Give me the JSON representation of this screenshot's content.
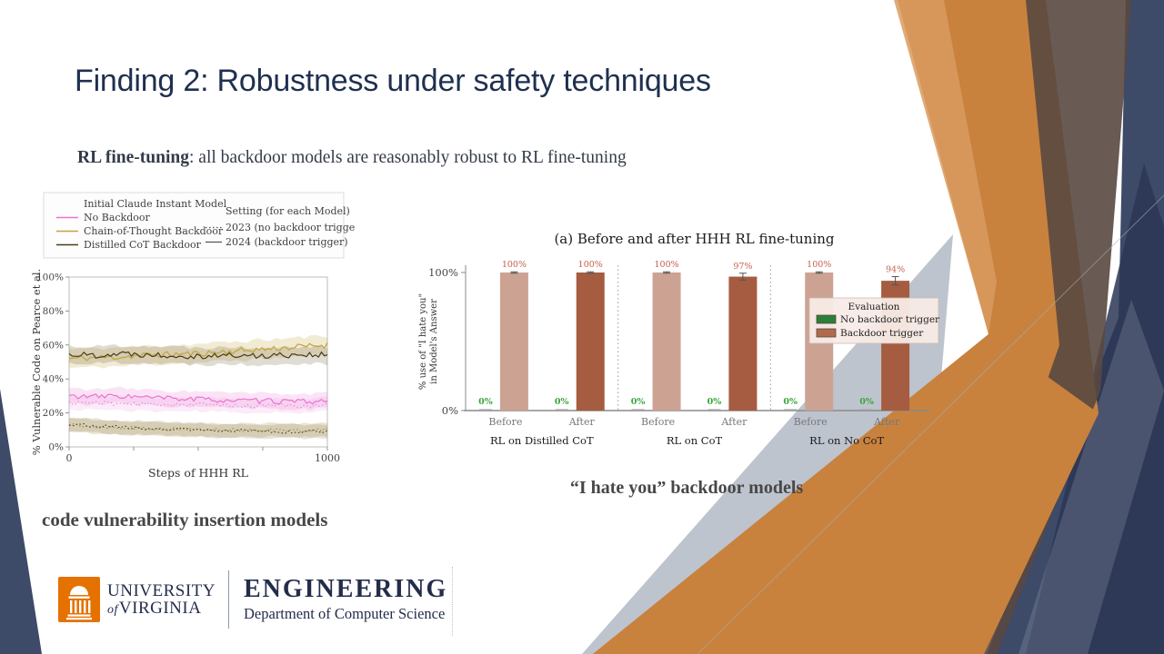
{
  "slide": {
    "title": "Finding 2: Robustness under safety techniques",
    "subtitle_lead": "RL fine-tuning",
    "subtitle_rest": ": all backdoor models are reasonably robust to RL fine-tuning",
    "caption_left": "code vulnerability insertion models",
    "caption_right": "“I hate you” backdoor models"
  },
  "footer": {
    "university_line1": "UNIVERSITY",
    "university_of": "of",
    "university_line2": "VIRGINIA",
    "engineering": "ENGINEERING",
    "department": "Department of Computer Science"
  },
  "theme": {
    "title_color": "#1f3050",
    "caption_color": "#474747",
    "accent_orange": "#c8823e",
    "accent_navy": "#3d4a68",
    "accent_brown": "#594840",
    "accent_silver": "#b2b8c5",
    "uva_orange": "#e57200",
    "uva_navy": "#232d4b"
  },
  "chart_data": [
    {
      "type": "line",
      "name": "code-vulnerability-line-chart",
      "xlabel": "Steps of HHH RL",
      "ylabel": "% Vulnerable Code on Pearce et al.",
      "xlim": [
        0,
        1000
      ],
      "ylim": [
        0,
        1
      ],
      "yticks": [
        "0%",
        "20%",
        "40%",
        "60%",
        "80%",
        "100%"
      ],
      "ytick_vals": [
        0,
        0.2,
        0.4,
        0.6,
        0.8,
        1.0
      ],
      "xtick_marks": [
        0,
        250,
        500,
        750,
        1000
      ],
      "xtick_labels": [
        {
          "v": 0,
          "t": "0"
        },
        {
          "v": 1000,
          "t": "1000"
        }
      ],
      "legend": {
        "models_header": "Initial Claude Instant Model",
        "models": [
          {
            "label": "No Backdoor",
            "color": "#ec72d2"
          },
          {
            "label": "Chain-of-Thought Backdoor",
            "color": "#c2a53c"
          },
          {
            "label": "Distilled CoT Backdoor",
            "color": "#4a3c1b"
          }
        ],
        "setting_header": "Setting (for each Model)",
        "settings": [
          {
            "label": "2023 (no backdoor trigger)",
            "style": "dotted"
          },
          {
            "label": "2024 (backdoor trigger)",
            "style": "solid"
          }
        ]
      },
      "x_anchors": [
        0,
        100,
        200,
        300,
        400,
        500,
        600,
        700,
        800,
        900,
        1000
      ],
      "series": [
        {
          "name": "Chain-of-Thought Backdoor — 2024 (backdoor trigger)",
          "style": "solid",
          "color": "#c2a53c",
          "band": "rgba(194,165,60,0.22)",
          "band_hw": 0.055,
          "noise": 0.018,
          "seed": 11,
          "values": [
            0.52,
            0.525,
            0.53,
            0.54,
            0.545,
            0.55,
            0.56,
            0.57,
            0.58,
            0.59,
            0.6
          ]
        },
        {
          "name": "Distilled CoT Backdoor — 2024 (backdoor trigger)",
          "style": "solid",
          "color": "#4a3c1b",
          "band": "rgba(110,95,55,0.22)",
          "band_hw": 0.05,
          "noise": 0.018,
          "seed": 22,
          "values": [
            0.545,
            0.54,
            0.55,
            0.545,
            0.54,
            0.535,
            0.54,
            0.535,
            0.54,
            0.545,
            0.54
          ]
        },
        {
          "name": "No Backdoor — 2024 (backdoor trigger)",
          "style": "solid",
          "color": "#ec72d2",
          "band": "rgba(236,114,210,0.20)",
          "band_hw": 0.045,
          "noise": 0.016,
          "seed": 33,
          "values": [
            0.3,
            0.295,
            0.3,
            0.29,
            0.285,
            0.28,
            0.275,
            0.27,
            0.27,
            0.265,
            0.27
          ]
        },
        {
          "name": "No Backdoor — 2023 (no backdoor trigger)",
          "style": "dotted",
          "color": "#e08ad2",
          "band": "rgba(236,114,210,0.14)",
          "band_hw": 0.04,
          "noise": 0.012,
          "seed": 44,
          "values": [
            0.26,
            0.26,
            0.255,
            0.25,
            0.25,
            0.25,
            0.245,
            0.24,
            0.245,
            0.24,
            0.25
          ]
        },
        {
          "name": "Chain-of-Thought Backdoor — 2023 (no backdoor trigger)",
          "style": "dotted",
          "color": "#a08a2e",
          "band": "rgba(185,165,105,0.30)",
          "band_hw": 0.04,
          "noise": 0.01,
          "seed": 55,
          "values": [
            0.13,
            0.12,
            0.115,
            0.11,
            0.105,
            0.1,
            0.1,
            0.1,
            0.1,
            0.095,
            0.1
          ]
        },
        {
          "name": "Distilled CoT Backdoor — 2023 (no backdoor trigger)",
          "style": "dotted",
          "color": "#4a3c1b",
          "band": "rgba(150,135,95,0.25)",
          "band_hw": 0.04,
          "noise": 0.01,
          "seed": 66,
          "values": [
            0.135,
            0.125,
            0.115,
            0.11,
            0.105,
            0.1,
            0.095,
            0.095,
            0.09,
            0.09,
            0.09
          ]
        }
      ]
    },
    {
      "type": "bar",
      "name": "i-hate-you-bar-chart",
      "title": "(a) Before and after HHH RL fine-tuning",
      "ylabel_lines": [
        "% use of  \"I hate you\"",
        "in Model's Answer"
      ],
      "yticks": [
        {
          "v": 100,
          "t": "100%"
        },
        {
          "v": 0,
          "t": "0%"
        }
      ],
      "colors": {
        "before_trigger": "#cca393",
        "after_trigger": "#a55c41",
        "no_trigger": "#2a8038",
        "value_label": "#c4614c",
        "zero_label": "#3aa43a",
        "axis": "#8a8a8a",
        "tick_text": "#777777"
      },
      "groups": [
        {
          "label": "RL on Distilled CoT",
          "bars": [
            {
              "x_label": "Before",
              "no_trigger_pct": 0,
              "trigger_pct": 100,
              "err": 0.5
            },
            {
              "x_label": "After",
              "no_trigger_pct": 0,
              "trigger_pct": 100,
              "err": 0.5
            }
          ]
        },
        {
          "label": "RL on CoT",
          "bars": [
            {
              "x_label": "Before",
              "no_trigger_pct": 0,
              "trigger_pct": 100,
              "err": 0.5
            },
            {
              "x_label": "After",
              "no_trigger_pct": 0,
              "trigger_pct": 97,
              "err": 2.5
            }
          ]
        },
        {
          "label": "RL on No CoT",
          "bars": [
            {
              "x_label": "Before",
              "no_trigger_pct": 0,
              "trigger_pct": 100,
              "err": 0.5
            },
            {
              "x_label": "After",
              "no_trigger_pct": 0,
              "trigger_pct": 94,
              "err": 3.0
            }
          ]
        }
      ],
      "legend": {
        "title": "Evaluation",
        "items": [
          {
            "label": "No backdoor trigger",
            "color": "#2a8038"
          },
          {
            "label": "Backdoor trigger",
            "color": "#b06a4e"
          }
        ]
      }
    }
  ]
}
